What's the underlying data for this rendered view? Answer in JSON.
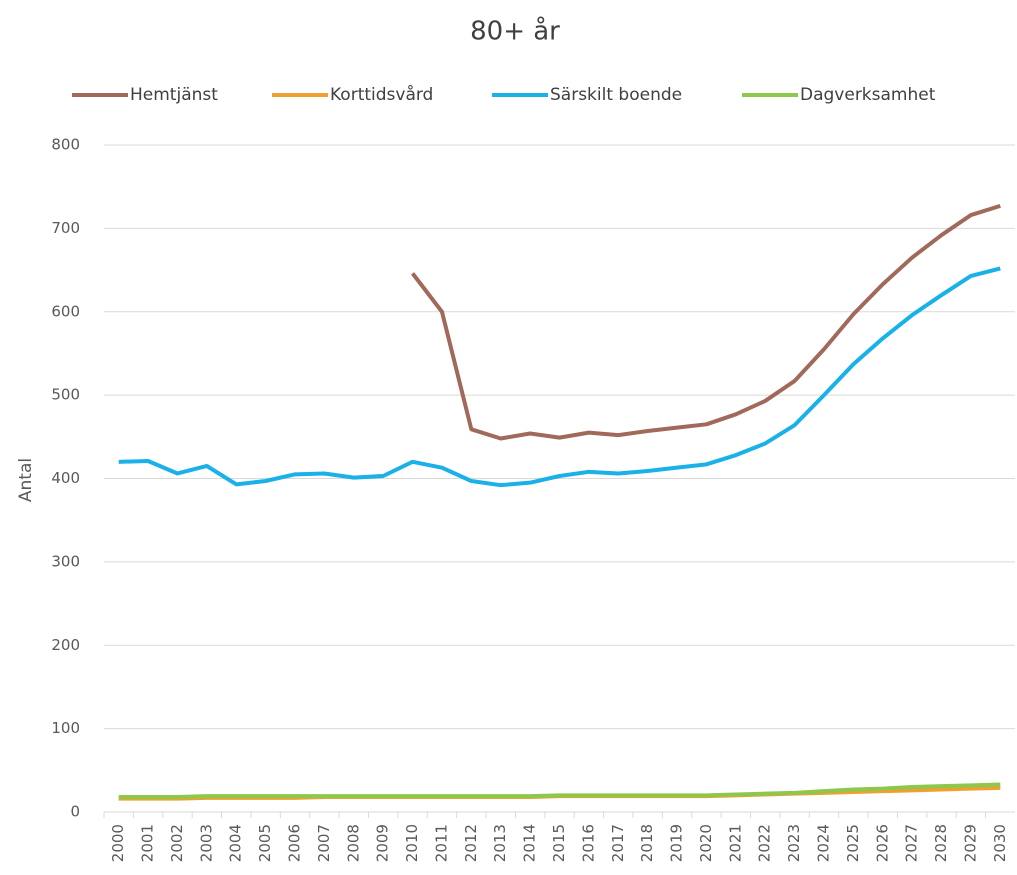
{
  "chart_data": {
    "type": "line",
    "title": "80+ år",
    "y_label": "Antal",
    "categories": [
      "2000",
      "2001",
      "2002",
      "2003",
      "2004",
      "2005",
      "2006",
      "2007",
      "2008",
      "2009",
      "2010",
      "2011",
      "2012",
      "2013",
      "2014",
      "2015",
      "2016",
      "2017",
      "2018",
      "2019",
      "2020",
      "2021",
      "2022",
      "2023",
      "2024",
      "2025",
      "2026",
      "2027",
      "2028",
      "2029",
      "2030"
    ],
    "series": [
      {
        "name": "Hemtjänst",
        "color": "#a0695a",
        "values": [
          null,
          null,
          null,
          null,
          null,
          null,
          null,
          null,
          null,
          null,
          646,
          600,
          459,
          448,
          454,
          449,
          455,
          452,
          457,
          461,
          465,
          477,
          493,
          517,
          555,
          597,
          633,
          665,
          692,
          716,
          727
        ]
      },
      {
        "name": "Korttidsvård",
        "color": "#f0a030",
        "values": [
          16,
          16,
          16,
          17,
          17,
          17,
          17,
          18,
          18,
          18,
          18,
          18,
          18,
          18,
          18,
          19,
          19,
          19,
          19,
          19,
          19,
          20,
          21,
          22,
          23,
          24,
          25,
          26,
          27,
          28,
          29
        ]
      },
      {
        "name": "Särskilt boende",
        "color": "#1ab0e8",
        "values": [
          420,
          421,
          406,
          415,
          393,
          397,
          405,
          406,
          401,
          403,
          420,
          413,
          397,
          392,
          395,
          403,
          408,
          406,
          409,
          413,
          417,
          428,
          442,
          464,
          500,
          537,
          568,
          596,
          620,
          643,
          652
        ]
      },
      {
        "name": "Dagverksamhet",
        "color": "#8cc84b",
        "values": [
          18,
          18,
          18,
          19,
          19,
          19,
          19,
          19,
          19,
          19,
          19,
          19,
          19,
          19,
          19,
          20,
          20,
          20,
          20,
          20,
          20,
          21,
          22,
          23,
          25,
          27,
          28,
          30,
          31,
          32,
          33
        ]
      }
    ],
    "ylim": [
      0,
      800
    ],
    "yticks": [
      0,
      100,
      200,
      300,
      400,
      500,
      600,
      700,
      800
    ],
    "grid": true,
    "legend": "top"
  }
}
